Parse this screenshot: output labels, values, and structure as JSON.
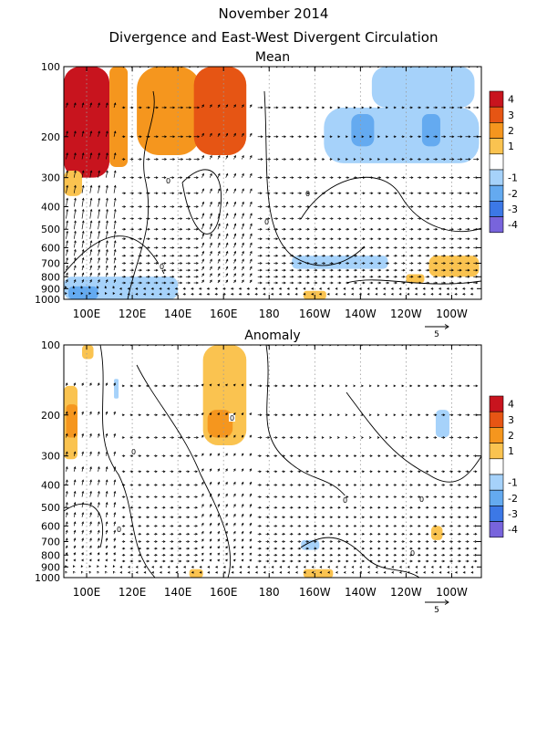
{
  "title": "November 2014",
  "subtitle": "Divergence and East-West Divergent Circulation",
  "chart_data": [
    {
      "type": "heatmap",
      "panel_title": "Mean",
      "x_ticks": [
        "100E",
        "120E",
        "140E",
        "160E",
        "180",
        "160W",
        "140W",
        "120W",
        "100W"
      ],
      "x_values": [
        100,
        120,
        140,
        160,
        180,
        200,
        220,
        240,
        260
      ],
      "xlim": [
        90,
        273
      ],
      "y_ticks": [
        "100",
        "200",
        "300",
        "400",
        "500",
        "600",
        "700",
        "800",
        "900",
        "1000"
      ],
      "y_values": [
        100,
        200,
        300,
        400,
        500,
        600,
        700,
        800,
        900,
        1000
      ],
      "ylim": [
        1000,
        100
      ],
      "y_scale": "log",
      "contour_label": "0",
      "vector_reference_label": "5",
      "colorbar": {
        "labels": [
          "4",
          "3",
          "2",
          "1",
          "-1",
          "-2",
          "-3",
          "-4"
        ],
        "colors": [
          "#c8141e",
          "#e65514",
          "#f5961e",
          "#fac350",
          "#ffffff",
          "#a6d2fa",
          "#64aaf0",
          "#3c78e6",
          "#7864dc"
        ]
      },
      "regions": [
        {
          "lon": [
            90,
            110
          ],
          "p": [
            100,
            300
          ],
          "level": 4
        },
        {
          "lon": [
            90,
            98
          ],
          "p": [
            280,
            360
          ],
          "level": 1
        },
        {
          "lon": [
            110,
            118
          ],
          "p": [
            100,
            270
          ],
          "level": 2
        },
        {
          "lon": [
            122,
            150
          ],
          "p": [
            100,
            240
          ],
          "level": 2
        },
        {
          "lon": [
            147,
            170
          ],
          "p": [
            100,
            240
          ],
          "level": 3
        },
        {
          "lon": [
            204,
            272
          ],
          "p": [
            150,
            260
          ],
          "level": -1
        },
        {
          "lon": [
            216,
            226
          ],
          "p": [
            160,
            220
          ],
          "level": -2
        },
        {
          "lon": [
            247,
            255
          ],
          "p": [
            160,
            220
          ],
          "level": -2
        },
        {
          "lon": [
            225,
            270
          ],
          "p": [
            100,
            150
          ],
          "level": -1
        },
        {
          "lon": [
            90,
            140
          ],
          "p": [
            800,
            1000
          ],
          "level": -1
        },
        {
          "lon": [
            92,
            105
          ],
          "p": [
            880,
            1000
          ],
          "level": -2
        },
        {
          "lon": [
            190,
            232
          ],
          "p": [
            650,
            740
          ],
          "level": -1
        },
        {
          "lon": [
            250,
            272
          ],
          "p": [
            650,
            800
          ],
          "level": 1
        },
        {
          "lon": [
            240,
            248
          ],
          "p": [
            780,
            850
          ],
          "level": 1
        },
        {
          "lon": [
            195,
            205
          ],
          "p": [
            920,
            1000
          ],
          "level": 1
        }
      ]
    },
    {
      "type": "heatmap",
      "panel_title": "Anomaly",
      "x_ticks": [
        "100E",
        "120E",
        "140E",
        "160E",
        "180",
        "160W",
        "140W",
        "120W",
        "100W"
      ],
      "x_values": [
        100,
        120,
        140,
        160,
        180,
        200,
        220,
        240,
        260
      ],
      "xlim": [
        90,
        273
      ],
      "y_ticks": [
        "100",
        "200",
        "300",
        "400",
        "500",
        "600",
        "700",
        "800",
        "900",
        "1000"
      ],
      "y_values": [
        100,
        200,
        300,
        400,
        500,
        600,
        700,
        800,
        900,
        1000
      ],
      "ylim": [
        1000,
        100
      ],
      "y_scale": "log",
      "contour_label": "0",
      "vector_reference_label": "5",
      "colorbar": {
        "labels": [
          "4",
          "3",
          "2",
          "1",
          "-1",
          "-2",
          "-3",
          "-4"
        ],
        "colors": [
          "#c8141e",
          "#e65514",
          "#f5961e",
          "#fac350",
          "#ffffff",
          "#a6d2fa",
          "#64aaf0",
          "#3c78e6",
          "#7864dc"
        ]
      },
      "regions": [
        {
          "lon": [
            90,
            96
          ],
          "p": [
            150,
            310
          ],
          "level": 1
        },
        {
          "lon": [
            91,
            96
          ],
          "p": [
            180,
            250
          ],
          "level": 2
        },
        {
          "lon": [
            98,
            103
          ],
          "p": [
            100,
            115
          ],
          "level": 1
        },
        {
          "lon": [
            112,
            114
          ],
          "p": [
            140,
            170
          ],
          "level": -1
        },
        {
          "lon": [
            151,
            170
          ],
          "p": [
            100,
            270
          ],
          "level": 1
        },
        {
          "lon": [
            153,
            164
          ],
          "p": [
            190,
            250
          ],
          "level": 2
        },
        {
          "lon": [
            253,
            259
          ],
          "p": [
            190,
            250
          ],
          "level": -1
        },
        {
          "lon": [
            194,
            202
          ],
          "p": [
            690,
            760
          ],
          "level": -1
        },
        {
          "lon": [
            251,
            256
          ],
          "p": [
            600,
            690
          ],
          "level": 1
        },
        {
          "lon": [
            145,
            151
          ],
          "p": [
            920,
            1000
          ],
          "level": 1
        },
        {
          "lon": [
            195,
            208
          ],
          "p": [
            920,
            1000
          ],
          "level": 1
        }
      ]
    }
  ]
}
